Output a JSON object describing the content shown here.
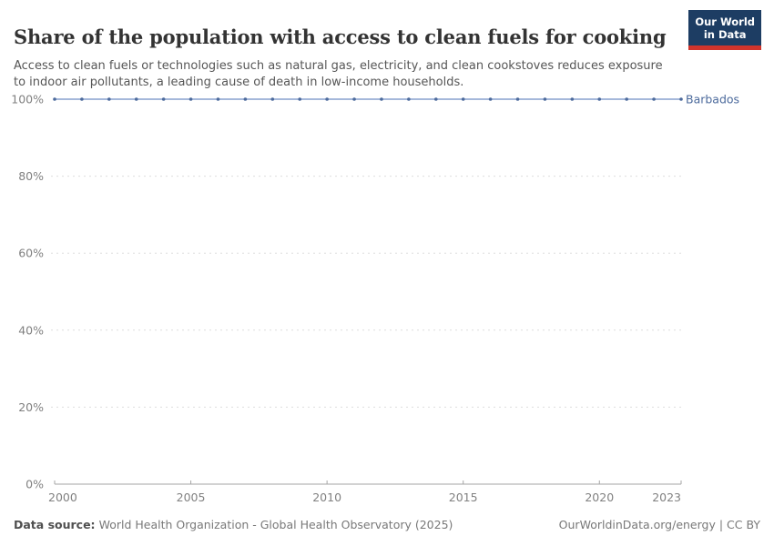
{
  "header": {
    "title": "Share of the population with access to clean fuels for cooking",
    "subtitle": "Access to clean fuels or technologies such as natural gas, electricity, and clean cookstoves reduces exposure to indoor air pollutants, a leading cause of death in low-income households.",
    "logo": {
      "line1": "Our World",
      "line2": "in Data"
    }
  },
  "chart_data": {
    "type": "line",
    "title": "Share of the population with access to clean fuels for cooking",
    "xlabel": "",
    "ylabel": "",
    "x": [
      2000,
      2001,
      2002,
      2003,
      2004,
      2005,
      2006,
      2007,
      2008,
      2009,
      2010,
      2011,
      2012,
      2013,
      2014,
      2015,
      2016,
      2017,
      2018,
      2019,
      2020,
      2021,
      2022,
      2023
    ],
    "series": [
      {
        "name": "Barbados",
        "color": "#4c6a9c",
        "values": [
          100,
          100,
          100,
          100,
          100,
          100,
          100,
          100,
          100,
          100,
          100,
          100,
          100,
          100,
          100,
          100,
          100,
          100,
          100,
          100,
          100,
          100,
          100,
          100
        ]
      }
    ],
    "xlim": [
      2000,
      2023
    ],
    "ylim": [
      0,
      100
    ],
    "yticks": [
      {
        "value": 0,
        "label": "0%"
      },
      {
        "value": 20,
        "label": "20%"
      },
      {
        "value": 40,
        "label": "40%"
      },
      {
        "value": 60,
        "label": "60%"
      },
      {
        "value": 80,
        "label": "80%"
      },
      {
        "value": 100,
        "label": "100%"
      }
    ],
    "xticks": [
      {
        "value": 2000,
        "label": "2000"
      },
      {
        "value": 2005,
        "label": "2005"
      },
      {
        "value": 2010,
        "label": "2010"
      },
      {
        "value": 2015,
        "label": "2015"
      },
      {
        "value": 2020,
        "label": "2020"
      },
      {
        "value": 2023,
        "label": "2023"
      }
    ],
    "grid": "horizontal-dashed",
    "legend_position": "inline-right-of-line"
  },
  "footer": {
    "datasource_label": "Data source:",
    "datasource_value": "World Health Organization - Global Health Observatory (2025)",
    "right_text": "OurWorldinData.org/energy | CC BY"
  },
  "colors": {
    "line": "#4c6a9c",
    "line_light": "#87a0cd",
    "grid": "#dddddd",
    "axis": "#a5a5a5",
    "tick_text": "#818181",
    "logo_bg": "#1d3d63",
    "logo_red": "#d0342c"
  }
}
